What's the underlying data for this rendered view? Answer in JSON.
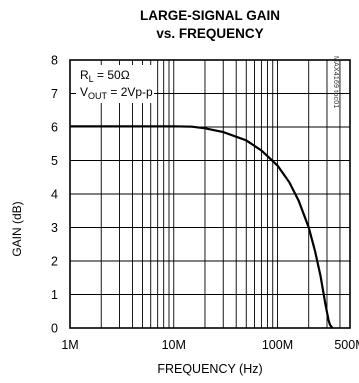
{
  "chart_data": {
    "type": "line",
    "title": "LARGE-SIGNAL GAIN",
    "subtitle": "vs. FREQUENCY",
    "xlabel": "FREQUENCY (Hz)",
    "ylabel": "GAIN (dB)",
    "x_scale": "log",
    "xlim": [
      1000000,
      500000000
    ],
    "ylim": [
      0,
      8
    ],
    "x_tick_labels": [
      "1M",
      "10M",
      "100M",
      "500M"
    ],
    "x_tick_values": [
      1000000,
      10000000,
      100000000,
      500000000
    ],
    "y_tick_labels": [
      "0",
      "1",
      "2",
      "3",
      "4",
      "5",
      "6",
      "7",
      "8"
    ],
    "y_tick_values": [
      0,
      1,
      2,
      3,
      4,
      5,
      6,
      7,
      8
    ],
    "grid": true,
    "annotations": {
      "load": "R",
      "load_sub": "L",
      "load_value": " = 50Ω",
      "vout": "V",
      "vout_sub": "OUT",
      "vout_value": " = 2Vp-p"
    },
    "watermark": "MAX4169 toc01",
    "series": [
      {
        "x": [
          1000000,
          5000000,
          10000000,
          15000000,
          20000000,
          30000000,
          50000000,
          70000000,
          100000000,
          130000000,
          160000000,
          200000000,
          230000000,
          260000000,
          290000000,
          310000000,
          320000000,
          330000000,
          340000000
        ],
        "values": [
          6.02,
          6.02,
          6.02,
          6.01,
          5.96,
          5.85,
          5.6,
          5.3,
          4.85,
          4.35,
          3.8,
          3.0,
          2.3,
          1.55,
          0.7,
          0.25,
          0.1,
          0.04,
          0.0
        ]
      }
    ],
    "colors": {
      "line": "#000000",
      "grid": "#000000",
      "background": "#ffffff"
    }
  }
}
